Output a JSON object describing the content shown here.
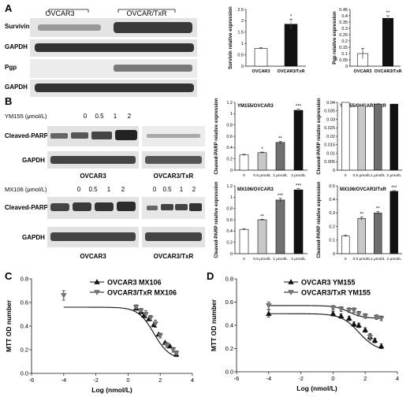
{
  "panels": {
    "A": "A",
    "B": "B",
    "C": "C",
    "D": "D"
  },
  "panel_a": {
    "blot_groups": [
      "OVCAR3",
      "OVCAR/TxR"
    ],
    "blot_rows": [
      "Survivin",
      "GAPDH",
      "Pgp",
      "GAPDH"
    ]
  },
  "panel_b": {
    "ym155_label": "YM155 (μmol/L)",
    "mx106_label": "MX106 (μmol/L)",
    "doses": [
      "0",
      "0.5",
      "1",
      "2"
    ],
    "cleaved_parp_label": "Cleaved-PARP",
    "gapdh_label": "GAPDH",
    "group_labels_ym155": [
      "OVCAR3",
      "OVCAR3/TxR"
    ],
    "group_labels_mx106": [
      "OVCAR3",
      "OVCAR3/TxR"
    ]
  },
  "colors": {
    "black": "#111111",
    "dark_gray": "#6f6f6f",
    "light_gray": "#c8c8c8",
    "white": "#ffffff",
    "blot_bg": "#e6e6e6",
    "band": "#3a3a3a"
  },
  "chart_data": [
    {
      "id": "a1",
      "type": "bar",
      "categories": [
        "OVCAR3",
        "OVCAR3/TxR"
      ],
      "values": [
        0.78,
        1.85
      ],
      "errors": [
        0.03,
        0.22
      ],
      "fills": [
        "white",
        "black"
      ],
      "significance": [
        "",
        "*"
      ],
      "ylabel": "Survivin relative expression",
      "ylim": [
        0,
        2.5
      ],
      "yticks": [
        0,
        0.5,
        1,
        1.5,
        2,
        2.5
      ],
      "ytick_labels": [
        "0",
        "0.5",
        "1",
        "1.5",
        "2",
        "2.5"
      ]
    },
    {
      "id": "a2",
      "type": "bar",
      "categories": [
        "OVCAR3",
        "OVCAR3/TxR"
      ],
      "values": [
        0.1,
        0.38
      ],
      "errors": [
        0.04,
        0.02
      ],
      "fills": [
        "white",
        "black"
      ],
      "significance": [
        "",
        "**"
      ],
      "ylabel": "Pgp relative expression",
      "ylim": [
        0,
        0.45
      ],
      "yticks": [
        0,
        0.05,
        0.1,
        0.15,
        0.2,
        0.25,
        0.3,
        0.35,
        0.4,
        0.45
      ],
      "ytick_labels": [
        "0",
        "0.05",
        "0.1",
        "0.15",
        "0.2",
        "0.25",
        "0.3",
        "0.35",
        "0.4",
        "0.45"
      ]
    },
    {
      "id": "b1",
      "type": "bar",
      "title": "YM155/OVCAR3",
      "categories": [
        "0",
        "0.5 μmol/L",
        "1 μmol/L",
        "2 μmol/L"
      ],
      "values": [
        0.27,
        0.31,
        0.49,
        1.06
      ],
      "errors": [
        0.01,
        0.01,
        0.02,
        0.02
      ],
      "fills": [
        "white",
        "light_gray",
        "dark_gray",
        "black"
      ],
      "significance": [
        "",
        "*",
        "**",
        "***"
      ],
      "ylabel": "Cleaved-PARP relative expression",
      "ylim": [
        0,
        1.2
      ],
      "yticks": [
        0,
        0.2,
        0.4,
        0.6,
        0.8,
        1,
        1.2
      ],
      "ytick_labels": [
        "0",
        "0.2",
        "0.4",
        "0.6",
        "0.8",
        "1",
        "1.2"
      ]
    },
    {
      "id": "b2",
      "type": "bar",
      "title": "YM155/OVCAR3/TxR",
      "categories": [
        "0",
        "0.5 μmol/L",
        "1 μmol/L",
        "2 μmol/L"
      ],
      "values": [
        0.04,
        0.038,
        0.039,
        0.039
      ],
      "errors": [
        0,
        0,
        0,
        0
      ],
      "fills": [
        "white",
        "light_gray",
        "dark_gray",
        "black"
      ],
      "significance": [
        "",
        "",
        "",
        ""
      ],
      "ylabel": "Cleaved-PARP relative expression",
      "ylim": [
        0,
        0.04
      ],
      "yticks": [
        0,
        0.005,
        0.01,
        0.015,
        0.02,
        0.025,
        0.03,
        0.035,
        0.04
      ],
      "ytick_labels": [
        "0",
        "0.005",
        "0.01",
        "0.015",
        "0.02",
        "0.025",
        "0.03",
        "0.035",
        "0.04"
      ]
    },
    {
      "id": "b3",
      "type": "bar",
      "title": "MX106/OVCAR3",
      "categories": [
        "0",
        "0.5 μmol/L",
        "1 μmol/L",
        "2 μmol/L"
      ],
      "values": [
        0.43,
        0.6,
        0.95,
        1.13
      ],
      "errors": [
        0.01,
        0.01,
        0.03,
        0.02
      ],
      "fills": [
        "white",
        "light_gray",
        "dark_gray",
        "black"
      ],
      "significance": [
        "",
        "**",
        "***",
        "***"
      ],
      "ylabel": "Cleaved-PARP relative expression",
      "ylim": [
        0,
        1.2
      ],
      "yticks": [
        0,
        0.2,
        0.4,
        0.6,
        0.8,
        1,
        1.2
      ],
      "ytick_labels": [
        "0",
        "0.2",
        "0.4",
        "0.6",
        "0.8",
        "1",
        "1.2"
      ]
    },
    {
      "id": "b4",
      "type": "bar",
      "title": "MX106/OVCAR3/TxR",
      "categories": [
        "0",
        "0.5 μmol/L",
        "1 μmol/L",
        "2 μmol/L"
      ],
      "values": [
        0.13,
        0.26,
        0.3,
        0.46
      ],
      "errors": [
        0.005,
        0.01,
        0.01,
        0.005
      ],
      "fills": [
        "white",
        "light_gray",
        "dark_gray",
        "black"
      ],
      "significance": [
        "",
        "**",
        "**",
        "***"
      ],
      "ylabel": "Cleaved-PARP relative expression",
      "ylim": [
        0,
        0.5
      ],
      "yticks": [
        0,
        0.1,
        0.2,
        0.3,
        0.4,
        0.5
      ],
      "ytick_labels": [
        "0",
        "0.1",
        "0.2",
        "0.3",
        "0.4",
        "0.5"
      ]
    },
    {
      "id": "c",
      "type": "scatter",
      "xlabel": "Log (nmol/L)",
      "ylabel": "MTT OD number",
      "xlim": [
        -6,
        4
      ],
      "ylim": [
        0,
        0.8
      ],
      "xticks": [
        -6,
        -4,
        -2,
        0,
        2,
        4
      ],
      "yticks": [
        0,
        0.2,
        0.4,
        0.6,
        0.8
      ],
      "xtick_labels": [
        "-6",
        "-4",
        "-2",
        "0",
        "2",
        "4"
      ],
      "ytick_labels": [
        "0.0",
        "0.2",
        "0.4",
        "0.6",
        "0.8"
      ],
      "legend_position": "top-right",
      "series": [
        {
          "name": "OVCAR3      MX106",
          "marker": "triangle-up",
          "points": [
            [
              0.5,
              0.55
            ],
            [
              0.8,
              0.52
            ],
            [
              1.0,
              0.49
            ],
            [
              1.3,
              0.46
            ],
            [
              1.6,
              0.41
            ],
            [
              1.9,
              0.33
            ],
            [
              2.3,
              0.26
            ],
            [
              2.6,
              0.23
            ],
            [
              3.0,
              0.16
            ]
          ]
        },
        {
          "name": "OVCAR3/TxR MX106",
          "marker": "triangle-down",
          "points": [
            [
              -4.0,
              0.66
            ],
            [
              0.5,
              0.56
            ],
            [
              0.8,
              0.53
            ],
            [
              1.1,
              0.5
            ],
            [
              1.4,
              0.47
            ],
            [
              1.7,
              0.42
            ],
            [
              2.0,
              0.32
            ],
            [
              2.4,
              0.24
            ],
            [
              2.8,
              0.2
            ],
            [
              3.0,
              0.17
            ]
          ],
          "errors": [
            0.04,
            0.02,
            0.02,
            0.03,
            0.02,
            0.03,
            0.02,
            0.02,
            0.02,
            0.02
          ]
        }
      ],
      "fit_curve": {
        "top": 0.56,
        "bottom": 0.12,
        "log_ic50": 1.6,
        "hill": 0.9
      }
    },
    {
      "id": "d",
      "type": "scatter",
      "xlabel": "Log (nmol/L)",
      "ylabel": "MTT OD number",
      "xlim": [
        -6,
        4
      ],
      "ylim": [
        0,
        0.8
      ],
      "xticks": [
        -6,
        -4,
        -2,
        0,
        2,
        4
      ],
      "yticks": [
        0,
        0.2,
        0.4,
        0.6,
        0.8
      ],
      "xtick_labels": [
        "-6",
        "-4",
        "-2",
        "0",
        "2",
        "4"
      ],
      "ytick_labels": [
        "0.0",
        "0.2",
        "0.4",
        "0.6",
        "0.8"
      ],
      "legend_position": "top-right",
      "series": [
        {
          "name": "OVCAR3       YM155",
          "marker": "triangle-up",
          "points": [
            [
              -4.0,
              0.5
            ],
            [
              0.0,
              0.5
            ],
            [
              0.5,
              0.48
            ],
            [
              1.0,
              0.46
            ],
            [
              1.3,
              0.41
            ],
            [
              1.6,
              0.4
            ],
            [
              2.0,
              0.36
            ],
            [
              2.3,
              0.3
            ],
            [
              2.6,
              0.27
            ],
            [
              3.0,
              0.22
            ]
          ],
          "errors": [
            0.03,
            0.02,
            0.02,
            0.02,
            0.02,
            0.02,
            0.02,
            0.02,
            0.02,
            0.02
          ]
        },
        {
          "name": "OVCAR3/TxR YM155",
          "marker": "triangle-down",
          "points": [
            [
              -4.0,
              0.57
            ],
            [
              0.0,
              0.55
            ],
            [
              0.5,
              0.54
            ],
            [
              1.0,
              0.53
            ],
            [
              1.3,
              0.53
            ],
            [
              1.6,
              0.5
            ],
            [
              2.0,
              0.48
            ],
            [
              2.3,
              0.3
            ],
            [
              2.7,
              0.47
            ],
            [
              3.0,
              0.46
            ]
          ],
          "errors": [
            0.03,
            0.02,
            0.02,
            0.02,
            0.02,
            0.02,
            0.02,
            0.03,
            0.02,
            0.02
          ]
        }
      ],
      "fit_curves": [
        {
          "top": 0.5,
          "bottom": 0.18,
          "log_ic50": 1.6,
          "hill": 0.8
        },
        {
          "top": 0.57,
          "bottom": 0.46,
          "log_ic50": 1.0,
          "hill": 1.0
        }
      ]
    }
  ]
}
